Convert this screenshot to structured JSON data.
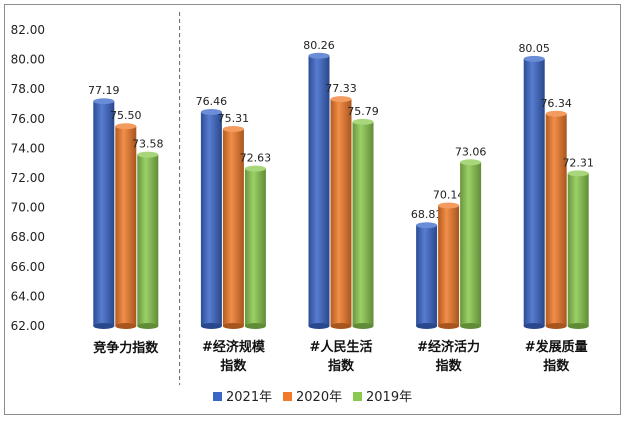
{
  "chart_data": {
    "type": "bar",
    "categories": [
      [
        "竞争力指数"
      ],
      [
        "#经济规模",
        "指数"
      ],
      [
        "#人民生活",
        "指数"
      ],
      [
        "#经济活力",
        "指数"
      ],
      [
        "#发展质量",
        "指数"
      ]
    ],
    "series": [
      {
        "name": "2021年",
        "values": [
          77.19,
          76.46,
          80.26,
          68.81,
          80.05
        ],
        "color": "#3a66c8"
      },
      {
        "name": "2020年",
        "values": [
          75.5,
          75.31,
          77.33,
          70.14,
          76.34
        ],
        "color": "#f07a2a"
      },
      {
        "name": "2019年",
        "values": [
          73.58,
          72.63,
          75.79,
          73.06,
          72.31
        ],
        "color": "#8bc84f"
      }
    ],
    "y_ticks": [
      "62.00",
      "64.00",
      "66.00",
      "68.00",
      "70.00",
      "72.00",
      "74.00",
      "76.00",
      "78.00",
      "80.00",
      "82.00"
    ],
    "ylim": [
      62,
      82
    ],
    "legend_position": "bottom",
    "grid": false,
    "divider_after_first_category": true
  }
}
